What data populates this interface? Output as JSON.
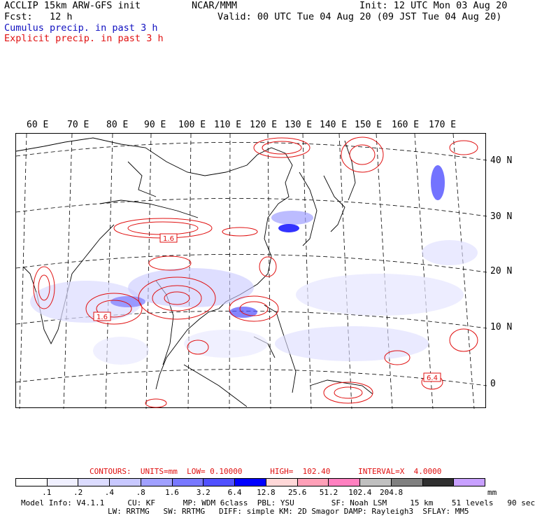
{
  "header": {
    "line1_left": "ACCLIP 15km ARW-GFS init",
    "line1_center": "NCAR/MMM",
    "line1_right": "Init: 12 UTC Mon 03 Aug 20",
    "line2_left": "Fcst:   12 h",
    "line2_right": "Valid: 00 UTC Tue 04 Aug 20 (09 JST Tue 04 Aug 20)",
    "legend_cumulus": "Cumulus precip. in past 3 h",
    "legend_explicit": "Explicit precip. in past 3 h"
  },
  "map": {
    "lon_labels": [
      "60 E",
      "70 E",
      "80 E",
      "90 E",
      "100 E",
      "110 E",
      "120 E",
      "130 E",
      "140 E",
      "150 E",
      "160 E",
      "170 E"
    ],
    "lat_labels": [
      "40 N",
      "30 N",
      "20 N",
      "10 N",
      "0"
    ],
    "contour_labels": [
      "1.6",
      "1.6",
      "6.4"
    ]
  },
  "contours_line": "CONTOURS:  UNITS=mm  LOW= 0.10000      HIGH=  102.40      INTERVAL=X  4.0000",
  "colorbar": {
    "colors": [
      "#ffffff",
      "#f0f0ff",
      "#dcdcff",
      "#c8c8ff",
      "#a0a0ff",
      "#7878ff",
      "#5050ff",
      "#0000ff",
      "#ffd8d8",
      "#ffa0b8",
      "#ff80c0",
      "#c0c0c0",
      "#808080",
      "#303030",
      "#c8a0ff"
    ],
    "labels": [
      ".1",
      ".2",
      ".4",
      ".8",
      "1.6",
      "3.2",
      "6.4",
      "12.8",
      "25.6",
      "51.2",
      "102.4",
      "204.8"
    ],
    "unit": "mm"
  },
  "model_info": {
    "line1": "Model Info: V4.1.1     CU: KF      MP: WDM 6class  PBL: YSU        SF: Noah LSM     15 km    51 levels   90 sec",
    "line2": "LW: RRTMG   SW: RRTMG   DIFF: simple KM: 2D Smagor DAMP: Rayleigh3  SFLAY: MM5"
  },
  "colors": {
    "cumulus": "#1010c0",
    "explicit": "#e01010"
  }
}
